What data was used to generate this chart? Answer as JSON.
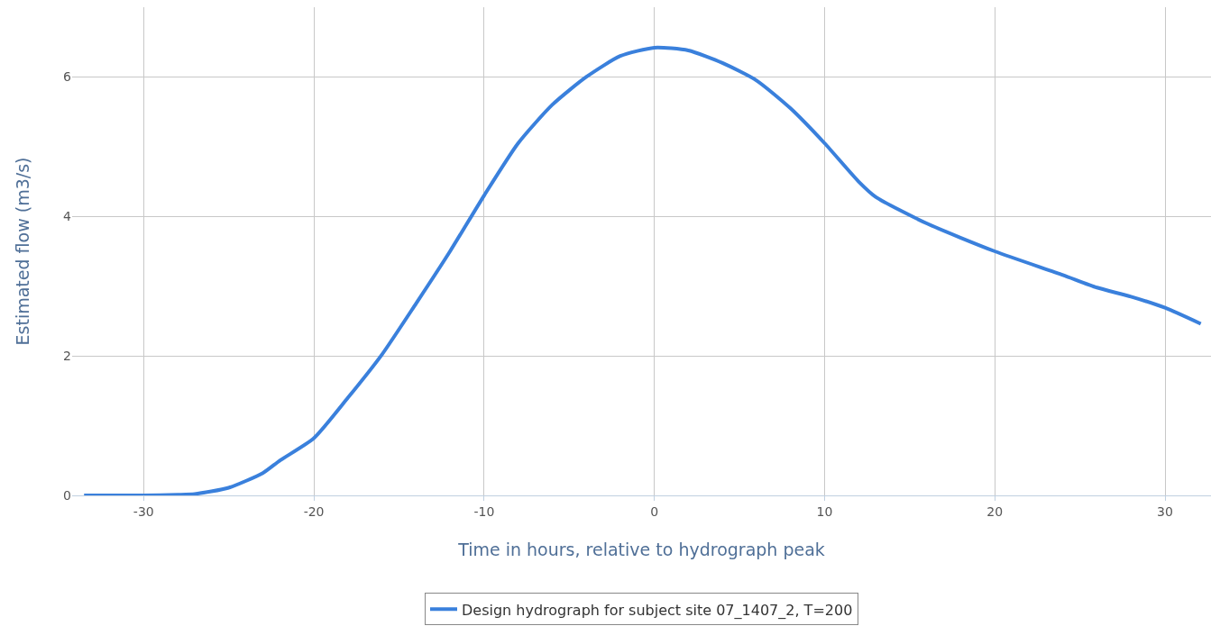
{
  "chart_data": {
    "type": "line",
    "xlabel": "Time in hours, relative to hydrograph peak",
    "ylabel": "Estimated flow (m3/s)",
    "xlim": [
      -34.2,
      32.7
    ],
    "xticks": [
      -30,
      -20,
      -10,
      0,
      10,
      20,
      30
    ],
    "ylim": [
      0,
      7.0
    ],
    "yticks": [
      0,
      2,
      4,
      6
    ],
    "grid": true,
    "legend": "bottom",
    "marker": "none",
    "line_style": "solid",
    "series": [
      {
        "name": "Design hydrograph for subject site 07_1407_2, T=200",
        "color": "#3a80dc",
        "x": [
          -33.5,
          -30,
          -28,
          -27,
          -25,
          -23,
          -22,
          -20,
          -18,
          -16,
          -14,
          -12,
          -10,
          -8,
          -6,
          -4,
          -2,
          0,
          2,
          4,
          6,
          8,
          10,
          12,
          13,
          16,
          20,
          24,
          26,
          28,
          30,
          32.1
        ],
        "values": [
          0,
          0,
          0.01,
          0.02,
          0.11,
          0.32,
          0.5,
          0.82,
          1.4,
          2.02,
          2.75,
          3.5,
          4.3,
          5.05,
          5.6,
          6.0,
          6.3,
          6.42,
          6.38,
          6.2,
          5.95,
          5.55,
          5.05,
          4.5,
          4.28,
          3.9,
          3.5,
          3.16,
          2.98,
          2.85,
          2.69,
          2.46
        ]
      }
    ]
  }
}
